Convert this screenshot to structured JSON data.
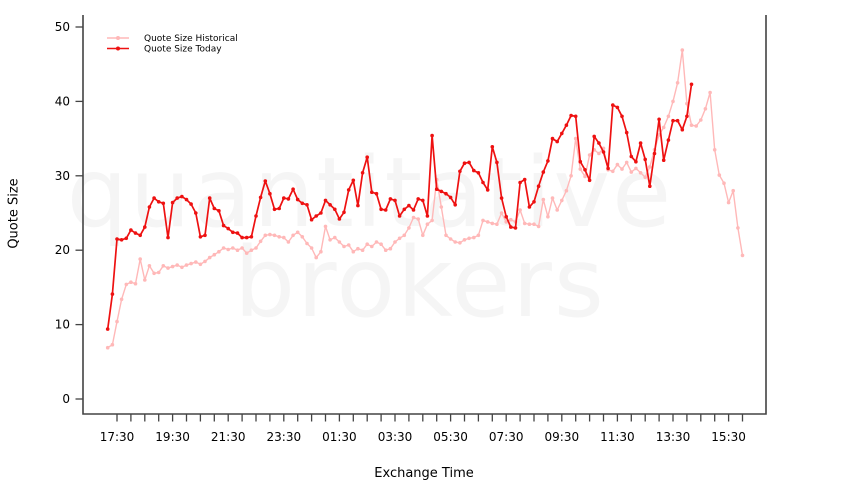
{
  "chart_data": {
    "type": "line",
    "title": "",
    "xlabel": "Exchange Time",
    "ylabel": "Quote Size",
    "ylim": [
      0,
      50
    ],
    "y_ticks": [
      0,
      10,
      20,
      30,
      40,
      50
    ],
    "x_tick_labels": [
      "17:30",
      "19:30",
      "21:30",
      "23:30",
      "01:30",
      "03:30",
      "05:30",
      "07:30",
      "09:30",
      "11:30",
      "13:30",
      "15:30"
    ],
    "x_major_step_minutes": 120,
    "x_minor_step_minutes": 30,
    "x_minor_last_minute": 1350,
    "grid": "off",
    "frame": "open-top-box",
    "axis_color": "#434343",
    "text_color": "#000000",
    "watermark": {
      "line1": "quantitative",
      "line2": "brokers",
      "color": "#f5f5f5"
    },
    "legend": {
      "position": "top-left",
      "items": [
        {
          "label": "Quote Size Historical",
          "color": "#ffb8b8"
        },
        {
          "label": "Quote Size Today",
          "color": "#ee1111"
        }
      ]
    },
    "series": [
      {
        "name": "Quote Size Historical",
        "color": "#ffb8b8",
        "line_width": 1.4,
        "start_time": "17:10",
        "interval_minutes": 10,
        "values": [
          6.9,
          7.3,
          10.4,
          13.4,
          15.4,
          15.7,
          15.5,
          18.8,
          16.0,
          17.9,
          16.9,
          17.0,
          17.9,
          17.6,
          17.8,
          18.0,
          17.7,
          18.0,
          18.2,
          18.4,
          18.1,
          18.5,
          19.0,
          19.4,
          19.8,
          20.3,
          20.1,
          20.3,
          20.0,
          20.3,
          19.6,
          20.0,
          20.3,
          21.2,
          22.0,
          22.1,
          22.0,
          21.8,
          21.7,
          21.1,
          22.0,
          22.4,
          21.8,
          20.9,
          20.3,
          19.0,
          19.8,
          23.2,
          21.4,
          21.7,
          21.1,
          20.5,
          20.7,
          19.8,
          20.2,
          20.0,
          20.8,
          20.5,
          21.1,
          20.8,
          20.0,
          20.2,
          21.1,
          21.6,
          22.0,
          23.0,
          24.4,
          24.2,
          22.0,
          23.5,
          24.0,
          29.5,
          25.8,
          22.0,
          21.5,
          21.1,
          21.0,
          21.4,
          21.6,
          21.7,
          22.0,
          24.0,
          23.8,
          23.6,
          23.5,
          25.0,
          23.8,
          24.1,
          23.8,
          25.4,
          23.6,
          23.5,
          23.5,
          23.2,
          26.8,
          24.5,
          27.0,
          25.4,
          26.7,
          28.0,
          30.0,
          35.0,
          30.9,
          29.9,
          32.8,
          33.5,
          33.0,
          33.7,
          30.8,
          30.6,
          31.5,
          30.9,
          31.8,
          30.5,
          31.0,
          30.4,
          29.8,
          31.2,
          33.5,
          35.5,
          36.5,
          38.0,
          40.0,
          42.5,
          46.9,
          39.7,
          36.8,
          36.7,
          37.5,
          39.0,
          41.2,
          33.5,
          30.1,
          29.0,
          26.4,
          28.0,
          23.0,
          19.3
        ]
      },
      {
        "name": "Quote Size Today",
        "color": "#ee1111",
        "line_width": 1.7,
        "start_time": "17:10",
        "interval_minutes": 10,
        "values": [
          9.4,
          14.1,
          21.5,
          21.4,
          21.6,
          22.7,
          22.3,
          22.0,
          23.1,
          25.8,
          27.0,
          26.5,
          26.3,
          21.7,
          26.4,
          27.0,
          27.2,
          26.8,
          26.2,
          25.0,
          21.8,
          22.0,
          27.0,
          25.6,
          25.3,
          23.3,
          22.9,
          22.4,
          22.3,
          21.7,
          21.7,
          21.8,
          24.6,
          27.1,
          29.3,
          27.6,
          25.5,
          25.6,
          27.0,
          26.9,
          28.2,
          26.8,
          26.3,
          26.1,
          24.1,
          24.6,
          25.0,
          26.7,
          26.1,
          25.5,
          24.2,
          25.1,
          28.1,
          29.4,
          26.0,
          30.4,
          32.5,
          27.8,
          27.6,
          25.5,
          25.4,
          26.9,
          26.7,
          24.6,
          25.5,
          26.0,
          25.4,
          26.9,
          26.7,
          24.6,
          35.4,
          28.2,
          27.9,
          27.6,
          27.1,
          26.1,
          30.6,
          31.7,
          31.8,
          30.7,
          30.4,
          29.1,
          28.1,
          33.9,
          31.8,
          27.0,
          24.5,
          23.1,
          23.0,
          29.1,
          29.5,
          25.8,
          26.5,
          28.6,
          30.5,
          32.0,
          35.0,
          34.6,
          35.7,
          36.8,
          38.1,
          38.0,
          31.9,
          30.8,
          29.4,
          35.3,
          34.4,
          33.2,
          31.0,
          39.5,
          39.2,
          38.0,
          35.8,
          32.6,
          31.9,
          34.4,
          32.2,
          28.6,
          33.0,
          37.6,
          32.1,
          34.8,
          37.4,
          37.4,
          36.2,
          38.0,
          42.3
        ]
      }
    ]
  }
}
